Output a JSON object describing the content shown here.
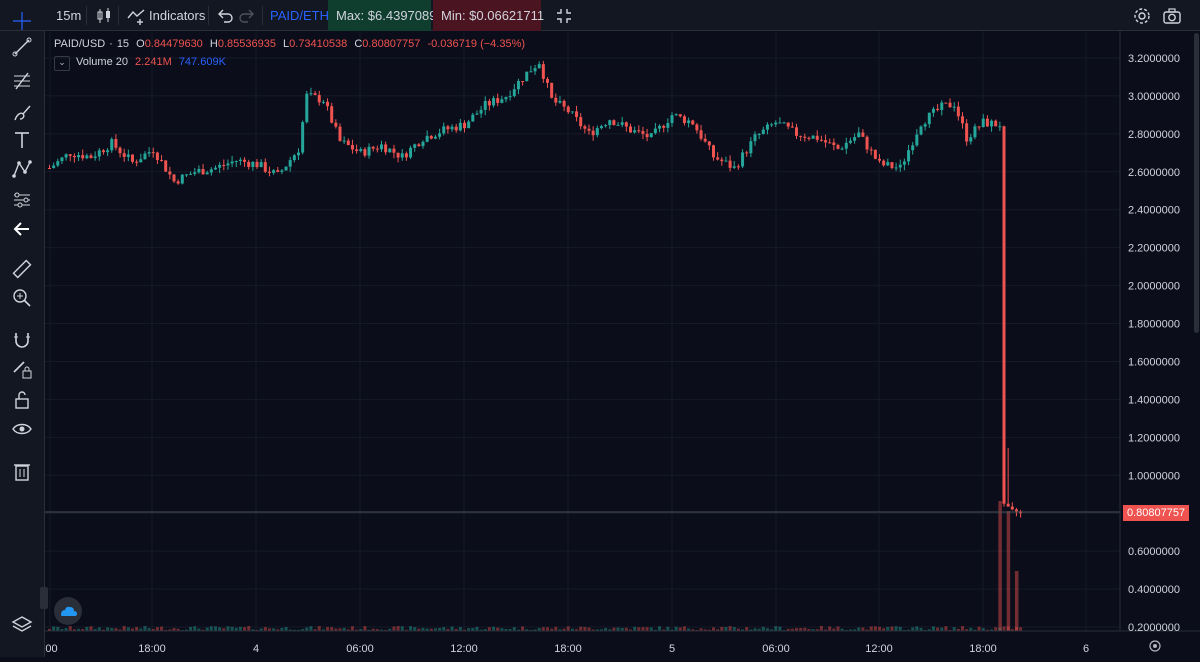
{
  "toolbar": {
    "interval": "15m",
    "indicators_label": "Indicators",
    "compare_symbol": "PAID/ETH",
    "max_label": "Max: $6.4397089",
    "min_label": "Min: $0.06621711"
  },
  "legend": {
    "symbol": "PAID/USD",
    "separator": "·",
    "interval": "15",
    "o_label": "O",
    "o_value": "0.84479630",
    "h_label": "H",
    "h_value": "0.85536935",
    "l_label": "L",
    "l_value": "0.73410538",
    "c_label": "C",
    "c_value": "0.80807757",
    "change": "-0.036719 (−4.35%)",
    "volume_label": "Volume 20",
    "volume_value1": "2.241M",
    "volume_value2": "747.609K"
  },
  "price_axis": {
    "ticks": [
      "3.2000000",
      "3.0000000",
      "2.8000000",
      "2.6000000",
      "2.4000000",
      "2.2000000",
      "2.0000000",
      "1.8000000",
      "1.6000000",
      "1.4000000",
      "1.2000000",
      "1.0000000",
      "0.8000000",
      "0.6000000",
      "0.4000000",
      "0.2000000"
    ],
    "current_price": "0.80807757"
  },
  "time_axis": {
    "labels": [
      ":00",
      "18:00",
      "4",
      "06:00",
      "12:00",
      "18:00",
      "5",
      "06:00",
      "12:00",
      "18:00",
      "6"
    ]
  },
  "colors": {
    "up": "#26a69a",
    "down": "#ef5350",
    "background": "#0b0e1a",
    "max_bg": "#0f3d2e",
    "min_bg": "#4a1420"
  },
  "icons": {
    "toolbar": [
      "candles-icon",
      "indicators-icon",
      "undo-icon",
      "redo-icon",
      "fullscreen-icon",
      "settings-icon",
      "camera-icon"
    ],
    "sidebar": [
      "crosshair-icon",
      "trend-line-icon",
      "fib-icon",
      "brush-icon",
      "text-icon",
      "pattern-icon",
      "forecast-icon",
      "back-icon",
      "ruler-icon",
      "zoom-in-icon",
      "magnet-icon",
      "lock-drawing-icon",
      "lock-icon",
      "eye-icon",
      "trash-icon",
      "layers-icon"
    ]
  },
  "chart_data": {
    "type": "candlestick",
    "title": "PAID/USD · 15",
    "ylim": [
      0.15,
      3.27
    ],
    "x": [
      ":00",
      "18:00",
      "4",
      "06:00",
      "12:00",
      "18:00",
      "5",
      "06:00",
      "12:00",
      "18:00",
      "6"
    ],
    "close_path": [
      [
        0,
        2.62
      ],
      [
        5,
        2.7
      ],
      [
        10,
        2.68
      ],
      [
        15,
        2.75
      ],
      [
        20,
        2.65
      ],
      [
        25,
        2.72
      ],
      [
        30,
        2.55
      ],
      [
        35,
        2.6
      ],
      [
        40,
        2.62
      ],
      [
        45,
        2.66
      ],
      [
        50,
        2.64
      ],
      [
        55,
        2.58
      ],
      [
        60,
        2.72
      ],
      [
        62,
        3.0
      ],
      [
        66,
        2.98
      ],
      [
        70,
        2.76
      ],
      [
        75,
        2.7
      ],
      [
        80,
        2.74
      ],
      [
        85,
        2.68
      ],
      [
        90,
        2.78
      ],
      [
        95,
        2.82
      ],
      [
        100,
        2.85
      ],
      [
        105,
        2.95
      ],
      [
        110,
        3.0
      ],
      [
        115,
        3.12
      ],
      [
        118,
        3.18
      ],
      [
        121,
        2.98
      ],
      [
        125,
        2.92
      ],
      [
        130,
        2.8
      ],
      [
        135,
        2.88
      ],
      [
        140,
        2.82
      ],
      [
        145,
        2.78
      ],
      [
        150,
        2.9
      ],
      [
        155,
        2.86
      ],
      [
        160,
        2.68
      ],
      [
        165,
        2.62
      ],
      [
        170,
        2.78
      ],
      [
        175,
        2.86
      ],
      [
        180,
        2.8
      ],
      [
        185,
        2.78
      ],
      [
        190,
        2.72
      ],
      [
        195,
        2.8
      ],
      [
        200,
        2.64
      ],
      [
        205,
        2.62
      ],
      [
        210,
        2.86
      ],
      [
        215,
        2.94
      ],
      [
        218,
        2.96
      ],
      [
        221,
        2.78
      ],
      [
        225,
        2.86
      ],
      [
        228,
        2.85
      ],
      [
        229,
        2.84
      ],
      [
        230,
        0.85
      ],
      [
        232,
        0.82
      ],
      [
        234,
        0.8
      ]
    ],
    "volume_spikes": [
      {
        "x": 229,
        "volume": "2.241M"
      },
      {
        "x": 231,
        "volume": "1.8M"
      },
      {
        "x": 233,
        "volume": "747.609K"
      }
    ],
    "last_close": 0.80807757
  }
}
